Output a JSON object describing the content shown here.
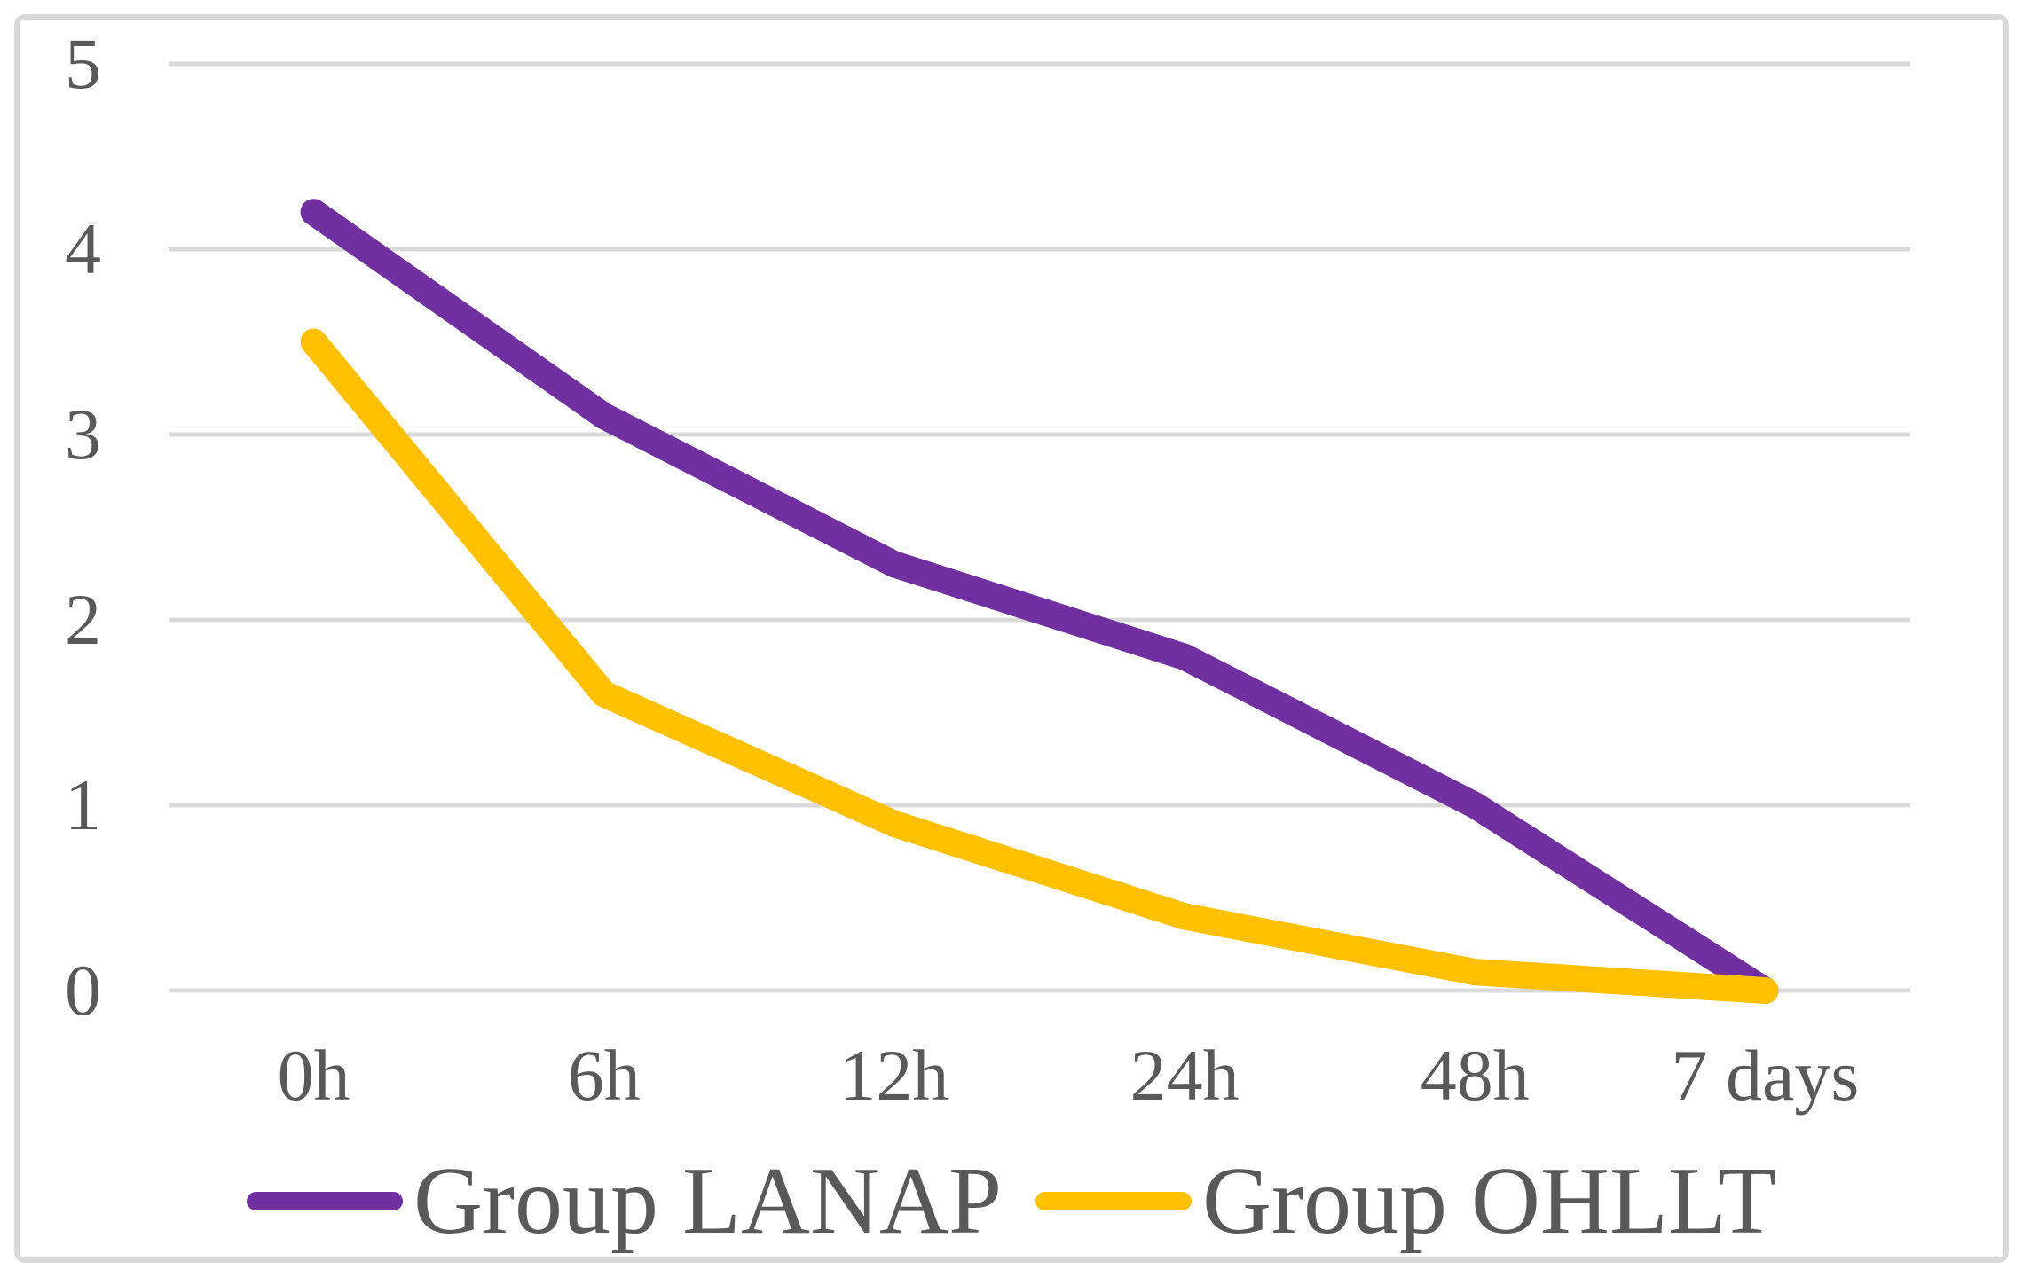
{
  "chart_data": {
    "type": "line",
    "categories": [
      "0h",
      "6h",
      "12h",
      "24h",
      "48h",
      "7 days"
    ],
    "series": [
      {
        "name": "Group LANAP",
        "color": "#7030A0",
        "values": [
          4.2,
          3.1,
          2.3,
          1.8,
          1.0,
          0
        ]
      },
      {
        "name": "Group OHLLT",
        "color": "#FFC000",
        "values": [
          3.5,
          1.6,
          0.9,
          0.4,
          0.1,
          0
        ]
      }
    ],
    "title": "",
    "xlabel": "",
    "ylabel": "",
    "ylim": [
      0,
      5
    ],
    "y_ticks": [
      0,
      1,
      2,
      3,
      4,
      5
    ],
    "grid": true,
    "legend_position": "bottom",
    "colors": {
      "tick_label": "#595959",
      "gridline": "#D9D9D9",
      "frame": "#D9D9D9",
      "background": "#FFFFFF"
    }
  }
}
